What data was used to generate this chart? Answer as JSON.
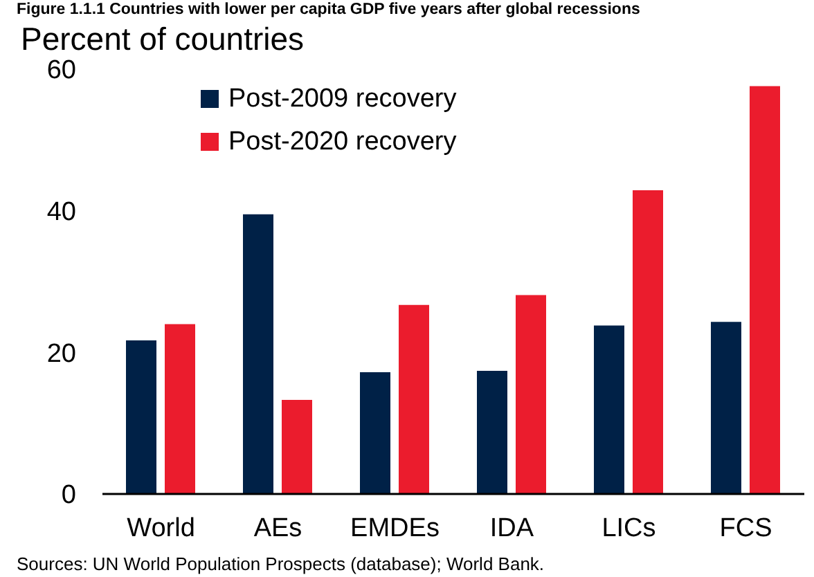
{
  "chart_data": {
    "type": "bar",
    "title": "Figure 1.1.1 Countries with lower per capita GDP five years after global recessions",
    "ylabel": "Percent of countries",
    "categories": [
      "World",
      "AEs",
      "EMDEs",
      "IDA",
      "LICs",
      "FCS"
    ],
    "series": [
      {
        "name": "Post-2009 recovery",
        "color": "#002147",
        "values": [
          21.7,
          39.5,
          17.2,
          17.4,
          23.8,
          24.3
        ]
      },
      {
        "name": "Post-2020 recovery",
        "color": "#eb1c2d",
        "values": [
          24.0,
          13.3,
          26.7,
          28.1,
          42.9,
          57.6
        ]
      }
    ],
    "ylim": [
      0,
      60
    ],
    "yticks": [
      0,
      20,
      40,
      60
    ],
    "legend": "top left",
    "annotations": [
      "Sources: UN World Population Prospects (database); World Bank."
    ]
  }
}
